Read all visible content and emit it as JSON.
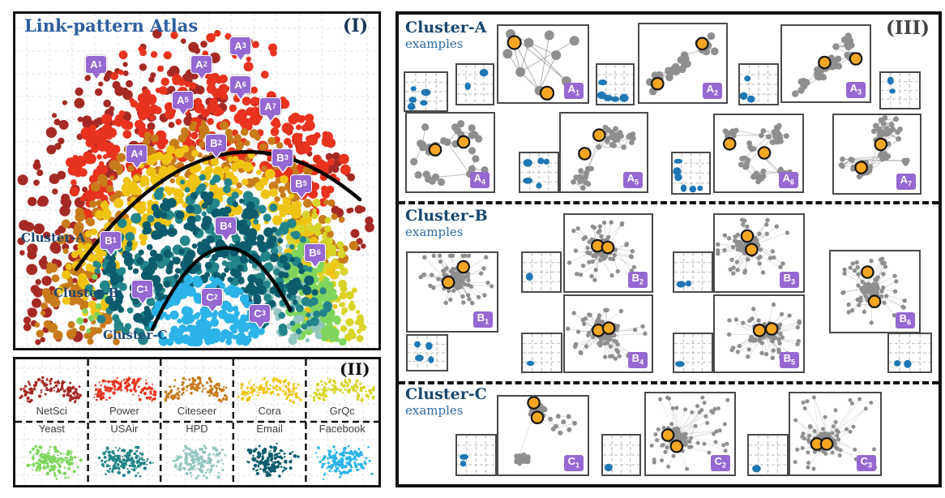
{
  "panel1": {
    "tag": "(I)",
    "title": "Link-pattern Atlas",
    "cluster_labels": [
      "Cluster-A",
      "Cluster-B",
      "Cluster-C"
    ],
    "markers": [
      "A1",
      "A2",
      "A3",
      "A4",
      "A5",
      "A6",
      "A7",
      "B1",
      "B2",
      "B3",
      "B4",
      "B5",
      "B6",
      "C1",
      "C2",
      "C3"
    ]
  },
  "panel2": {
    "tag": "(II)",
    "top_row": [
      {
        "name": "NetSci",
        "color": "#a52a25"
      },
      {
        "name": "Power",
        "color": "#e8331f"
      },
      {
        "name": "Citeseer",
        "color": "#c87b1b"
      },
      {
        "name": "Cora",
        "color": "#f0c414"
      },
      {
        "name": "GrQc",
        "color": "#d9d428"
      }
    ],
    "bottom_row": [
      {
        "name": "Yeast",
        "color": "#7fd65e"
      },
      {
        "name": "USAir",
        "color": "#23858a"
      },
      {
        "name": "HPD",
        "color": "#93c6c0"
      },
      {
        "name": "Email",
        "color": "#0d5c6e"
      },
      {
        "name": "Facebook",
        "color": "#2cb3e8"
      }
    ]
  },
  "panel3": {
    "tag": "(III)",
    "sections": [
      {
        "title": "Cluster-A",
        "subtitle": "examples",
        "examples": [
          "A1",
          "A2",
          "A3",
          "A4",
          "A5",
          "A6",
          "A7"
        ]
      },
      {
        "title": "Cluster-B",
        "subtitle": "examples",
        "examples": [
          "B1",
          "B2",
          "B3",
          "B4",
          "B5",
          "B6"
        ]
      },
      {
        "title": "Cluster-C",
        "subtitle": "examples",
        "examples": [
          "C1",
          "C2",
          "C3"
        ]
      }
    ]
  },
  "colors": {
    "netsci": "#a52a25",
    "power": "#e8331f",
    "citeseer": "#c87b1b",
    "cora": "#f0c414",
    "grqc": "#d9d428",
    "yeast": "#7fd65e",
    "usair": "#23858a",
    "hpd": "#93c6c0",
    "email": "#0d5c6e",
    "facebook": "#2cb3e8",
    "annotation_purple": "#9668d2",
    "highlight_orange": "#f5a623",
    "graph_gray": "#8f8f8f",
    "context_blue": "#1f77b4"
  },
  "chart_data": [
    {
      "type": "scatter",
      "panel": "I",
      "title": "Link-pattern Atlas",
      "description": "2-D embedding atlas of link patterns from 10 real-world networks; point color indicates source network; three regions (Cluster-A outer arc, Cluster-B middle band, Cluster-C inner bottom) separated by two black arcs; purple map-pin annotations mark example patterns",
      "grid": true,
      "axes": "none",
      "clusters": [
        {
          "name": "Cluster-A",
          "region": "outer arc (top)",
          "annotated_examples": [
            "A1",
            "A2",
            "A3",
            "A4",
            "A5",
            "A6",
            "A7"
          ],
          "dominant_colors": [
            "#a52a25",
            "#e8331f",
            "#c87b1b",
            "#f0c414",
            "#d9d428"
          ]
        },
        {
          "name": "Cluster-B",
          "region": "middle band",
          "annotated_examples": [
            "B1",
            "B2",
            "B3",
            "B4",
            "B5",
            "B6"
          ],
          "dominant_colors": [
            "#23858a",
            "#0d5c6e",
            "#93c6c0",
            "#7fd65e"
          ]
        },
        {
          "name": "Cluster-C",
          "region": "inner bottom",
          "annotated_examples": [
            "C1",
            "C2",
            "C3"
          ],
          "dominant_colors": [
            "#2cb3e8"
          ]
        }
      ]
    },
    {
      "type": "scatter",
      "panel": "II",
      "description": "small-multiple scatters showing the atlas footprint of each of the 10 datasets",
      "subplots": [
        {
          "name": "NetSci",
          "color": "#a52a25",
          "row": "top",
          "shape": "arc"
        },
        {
          "name": "Power",
          "color": "#e8331f",
          "row": "top",
          "shape": "arc"
        },
        {
          "name": "Citeseer",
          "color": "#c87b1b",
          "row": "top",
          "shape": "arc"
        },
        {
          "name": "Cora",
          "color": "#f0c414",
          "row": "top",
          "shape": "arc"
        },
        {
          "name": "GrQc",
          "color": "#d9d428",
          "row": "top",
          "shape": "arc"
        },
        {
          "name": "Yeast",
          "color": "#7fd65e",
          "row": "bottom",
          "shape": "blob"
        },
        {
          "name": "USAir",
          "color": "#23858a",
          "row": "bottom",
          "shape": "blob"
        },
        {
          "name": "HPD",
          "color": "#93c6c0",
          "row": "bottom",
          "shape": "blob"
        },
        {
          "name": "Email",
          "color": "#0d5c6e",
          "row": "bottom",
          "shape": "blob"
        },
        {
          "name": "Facebook",
          "color": "#2cb3e8",
          "row": "bottom",
          "shape": "blob"
        }
      ]
    },
    {
      "type": "node-link-examples",
      "panel": "III",
      "description": "example link-pattern graphs per cluster; each example is a gray node-link diagram with two orange highlighted nodes plus a small context scatter thumbnail with blue points; Cluster-A examples are sparse/tree-like, Cluster-B are dense hub-and-spoke, Cluster-C are very dense blobs with long-range edges",
      "sections": [
        {
          "cluster": "Cluster-A",
          "examples": [
            "A1",
            "A2",
            "A3",
            "A4",
            "A5",
            "A6",
            "A7"
          ],
          "highlighted_nodes_per_example": 2
        },
        {
          "cluster": "Cluster-B",
          "examples": [
            "B1",
            "B2",
            "B3",
            "B4",
            "B5",
            "B6"
          ],
          "highlighted_nodes_per_example": 2
        },
        {
          "cluster": "Cluster-C",
          "examples": [
            "C1",
            "C2",
            "C3"
          ],
          "highlighted_nodes_per_example": 2
        }
      ]
    }
  ]
}
